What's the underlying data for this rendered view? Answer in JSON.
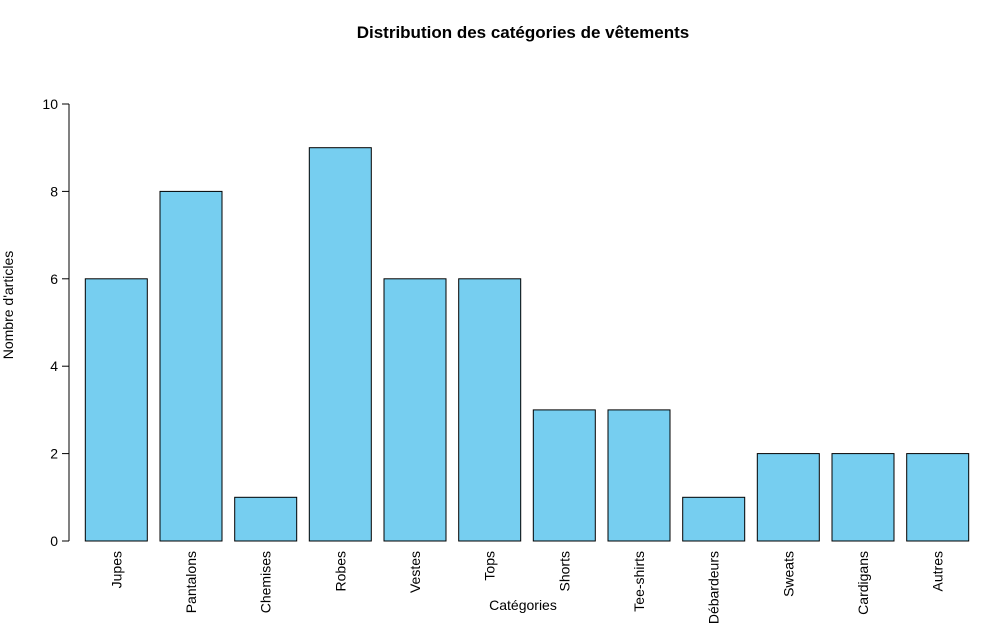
{
  "chart_data": {
    "type": "bar",
    "title": "Distribution des catégories de vêtements",
    "xlabel": "Catégories",
    "ylabel": "Nombre d'articles",
    "categories": [
      "Jupes",
      "Pantalons",
      "Chemises",
      "Robes",
      "Vestes",
      "Tops",
      "Shorts",
      "Tee-shirts",
      "Débardeurs",
      "Sweats",
      "Cardigans",
      "Autres"
    ],
    "values": [
      6,
      8,
      1,
      9,
      6,
      6,
      3,
      3,
      1,
      2,
      2,
      2
    ],
    "ylim": [
      0,
      10
    ],
    "yticks": [
      0,
      2,
      4,
      6,
      8,
      10
    ],
    "grid": false,
    "legend": "none",
    "bar_color": "#76CEF0",
    "bar_edge_color": "#000000"
  }
}
